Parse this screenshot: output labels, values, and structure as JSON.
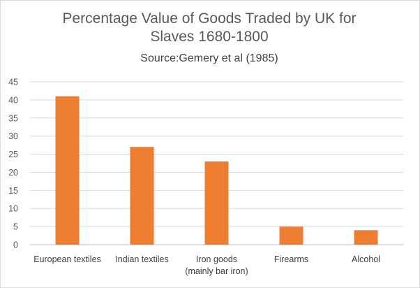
{
  "chart_data": {
    "type": "bar",
    "title_lines": [
      "Percentage Value of Goods Traded by UK for",
      "Slaves 1680-1800"
    ],
    "subtitle": "Source:Gemery et al (1985)",
    "categories": [
      [
        "European textiles"
      ],
      [
        "Indian textiles"
      ],
      [
        "Iron goods",
        "(mainly bar iron)"
      ],
      [
        "Firearms"
      ],
      [
        "Alcohol"
      ]
    ],
    "values": [
      41,
      27,
      23,
      5,
      4
    ],
    "ylim": [
      0,
      45
    ],
    "ytick_step": 5,
    "xlabel": "",
    "ylabel": "",
    "grid": true,
    "legend": "none",
    "colors": {
      "bar": "#ED7D31",
      "grid": "#d9d9d9",
      "axis": "#bfbfbf"
    }
  }
}
